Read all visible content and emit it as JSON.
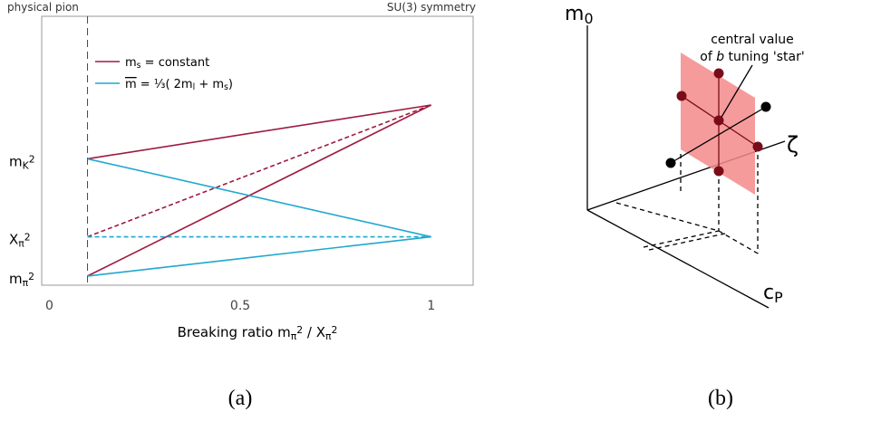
{
  "panel_a": {
    "type": "line",
    "annotations": {
      "left": "physical pion",
      "right": "SU(3) symmetry"
    },
    "x_label": [
      [
        "Breaking ratio m"
      ],
      [
        "π",
        "sub"
      ],
      [
        "2",
        "sup"
      ],
      [
        " / X"
      ],
      [
        "π",
        "sub"
      ],
      [
        "2",
        "sup"
      ]
    ],
    "x": [
      0.1,
      1
    ],
    "xlim": [
      -0.02,
      1.11
    ],
    "xticks": [
      0,
      0.5,
      1
    ],
    "ylim": [
      0,
      1
    ],
    "yticks": [
      {
        "value": 0.034,
        "label": [
          [
            "m"
          ],
          [
            "π",
            "sub"
          ],
          [
            "2",
            "sup"
          ]
        ]
      },
      {
        "value": 0.18,
        "label": [
          [
            "X"
          ],
          [
            "π",
            "sub"
          ],
          [
            "2",
            "sup"
          ]
        ]
      },
      {
        "value": 0.47,
        "label": [
          [
            "m"
          ],
          [
            "K",
            "sub"
          ],
          [
            "2",
            "sup"
          ]
        ]
      }
    ],
    "series": [
      {
        "name": [
          [
            "m"
          ],
          [
            "s",
            "sub"
          ],
          [
            " = constant"
          ]
        ],
        "color": "#9e1a3f",
        "lines": [
          {
            "values": [
              0.47,
              0.67
            ]
          },
          {
            "values": [
              0.034,
              0.67
            ]
          },
          {
            "values": [
              0.18,
              0.67
            ],
            "dashed": true
          }
        ]
      },
      {
        "name": [
          [
            "m",
            "over"
          ],
          [
            " = "
          ],
          [
            "⅓"
          ],
          [
            "( 2m"
          ],
          [
            "l",
            "sub"
          ],
          [
            " + m"
          ],
          [
            "s",
            "sub"
          ],
          [
            ")"
          ]
        ],
        "color": "#1fa7cf",
        "lines": [
          {
            "values": [
              0.47,
              0.18
            ]
          },
          {
            "values": [
              0.034,
              0.18
            ]
          },
          {
            "values": [
              0.18,
              0.18
            ],
            "dashed": true
          }
        ]
      }
    ],
    "caption": "(a)"
  },
  "panel_b": {
    "axes": {
      "vertical": [
        [
          "m"
        ],
        [
          "0",
          "sub"
        ]
      ],
      "depth": [
        [
          "c"
        ],
        [
          "P",
          "sub"
        ]
      ],
      "horizontal": [
        [
          "ζ"
        ]
      ]
    },
    "annotation": [
      [
        [
          "central value"
        ]
      ],
      [
        [
          "of "
        ],
        [
          "b",
          "i"
        ],
        [
          " tuning 'star'"
        ]
      ]
    ],
    "caption": "(b)"
  }
}
